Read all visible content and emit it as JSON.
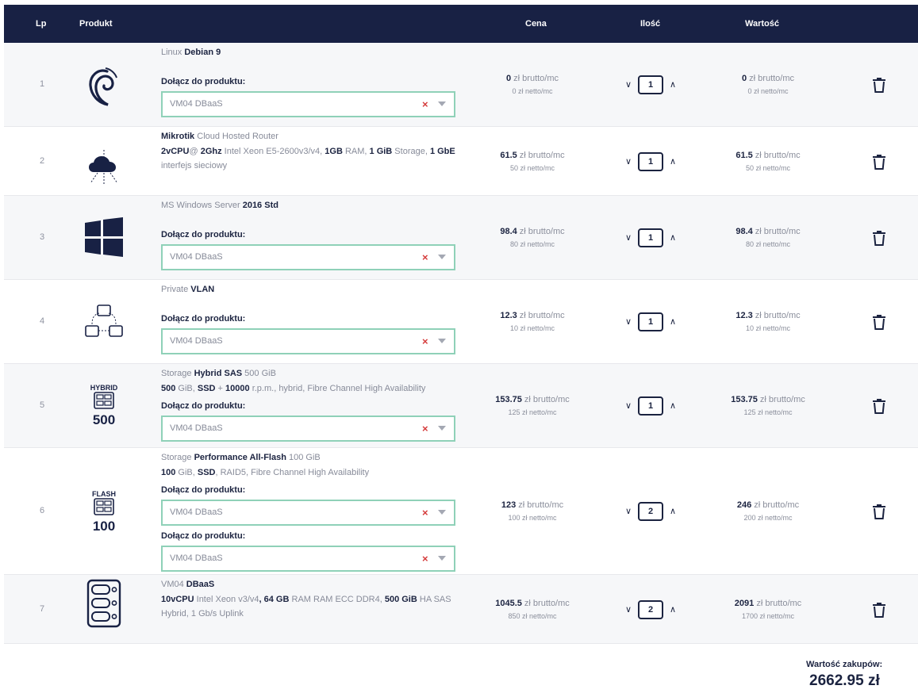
{
  "header": {
    "lp": "Lp",
    "produkt": "Produkt",
    "cena": "Cena",
    "ilosc": "Ilość",
    "wartosc": "Wartość"
  },
  "join_label": "Dołącz do produktu:",
  "price_suffix_brutto": " zł brutto/mc",
  "rows": [
    {
      "lp": "1",
      "icon": "debian-icon",
      "title_plain": "Linux ",
      "title_bold": "Debian 9",
      "spec": null,
      "selects": [
        "VM04 DBaaS"
      ],
      "price_b": "0",
      "price_n": "0 zł netto/mc",
      "qty": "1",
      "value_b": "0",
      "value_n": "0 zł netto/mc"
    },
    {
      "lp": "2",
      "icon": "cloud-router-icon",
      "title_bold": "Mikrotik",
      "title_plain": " Cloud Hosted Router",
      "spec": [
        {
          "b": "2vCPU"
        },
        {
          "t": "@ "
        },
        {
          "b": "2Ghz"
        },
        {
          "t": " Intel Xeon E5-2600v3/v4, "
        },
        {
          "b": "1GB"
        },
        {
          "t": " RAM, "
        },
        {
          "b": "1 GiB"
        },
        {
          "t": " Storage, "
        },
        {
          "b": "1 GbE"
        },
        {
          "t": " interfejs sieciowy"
        }
      ],
      "selects": [],
      "price_b": "61.5",
      "price_n": "50 zł netto/mc",
      "qty": "1",
      "value_b": "61.5",
      "value_n": "50 zł netto/mc"
    },
    {
      "lp": "3",
      "icon": "windows-icon",
      "title_plain": "MS Windows Server ",
      "title_bold": "2016 Std",
      "spec": null,
      "selects": [
        "VM04 DBaaS"
      ],
      "price_b": "98.4",
      "price_n": "80 zł netto/mc",
      "qty": "1",
      "value_b": "98.4",
      "value_n": "80 zł netto/mc"
    },
    {
      "lp": "4",
      "icon": "vlan-icon",
      "title_plain": "Private ",
      "title_bold": "VLAN",
      "spec": null,
      "selects": [
        "VM04 DBaaS"
      ],
      "price_b": "12.3",
      "price_n": "10 zł netto/mc",
      "qty": "1",
      "value_b": "12.3",
      "value_n": "10 zł netto/mc"
    },
    {
      "lp": "5",
      "icon": "hybrid-storage-icon",
      "icon_top": "HYBRID",
      "icon_num": "500",
      "title_plain": "Storage ",
      "title_bold": "Hybrid SAS",
      "title_tail": " 500 GiB",
      "spec": [
        {
          "b": "500"
        },
        {
          "t": " GiB, "
        },
        {
          "b": "SSD"
        },
        {
          "t": " + "
        },
        {
          "b": "10000"
        },
        {
          "t": " r.p.m., hybrid, Fibre Channel High Availability"
        }
      ],
      "selects": [
        "VM04 DBaaS"
      ],
      "price_b": "153.75",
      "price_n": "125 zł netto/mc",
      "qty": "1",
      "value_b": "153.75",
      "value_n": "125 zł netto/mc"
    },
    {
      "lp": "6",
      "icon": "flash-storage-icon",
      "icon_top": "FLASH",
      "icon_num": "100",
      "title_plain": "Storage ",
      "title_bold": "Performance All-Flash",
      "title_tail": " 100 GiB",
      "spec": [
        {
          "b": "100"
        },
        {
          "t": " GiB, "
        },
        {
          "b": "SSD"
        },
        {
          "t": ", RAID5, Fibre Channel High Availability"
        }
      ],
      "selects": [
        "VM04 DBaaS",
        "VM04 DBaaS"
      ],
      "price_b": "123",
      "price_n": "100 zł netto/mc",
      "qty": "2",
      "value_b": "246",
      "value_n": "200 zł netto/mc"
    },
    {
      "lp": "7",
      "icon": "server-icon",
      "title_plain": "VM04 ",
      "title_bold": "DBaaS",
      "spec": [
        {
          "b": "10vCPU"
        },
        {
          "t": " Intel Xeon v3/v4"
        },
        {
          "b": ", 64 GB"
        },
        {
          "t": " RAM RAM ECC DDR4, "
        },
        {
          "b": "500 GiB"
        },
        {
          "t": " HA SAS Hybrid, 1 Gb/s Uplink"
        }
      ],
      "selects": [],
      "price_b": "1045.5",
      "price_n": "850 zł netto/mc",
      "qty": "2",
      "value_b": "2091",
      "value_n": "1700 zł netto/mc"
    }
  ],
  "summary": {
    "label": "Wartość zakupów:",
    "total": "2662.95 zł"
  }
}
